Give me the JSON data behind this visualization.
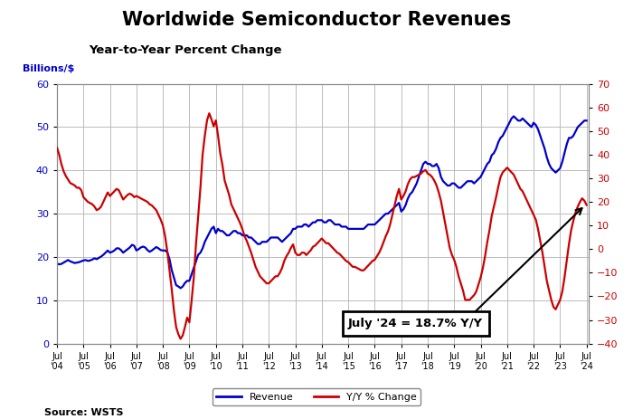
{
  "title": "Worldwide Semiconductor Revenues",
  "subtitle": "Year-to-Year Percent Change",
  "ylabel_left": "Billions/$",
  "source": "Source: WSTS",
  "ylim_left": [
    0,
    60
  ],
  "ylim_right": [
    -40,
    70
  ],
  "yticks_left": [
    0,
    10,
    20,
    30,
    40,
    50,
    60
  ],
  "yticks_right": [
    -40,
    -30,
    -20,
    -10,
    0,
    10,
    20,
    30,
    40,
    50,
    60,
    70
  ],
  "revenue_color": "#0000cc",
  "yoy_color": "#cc0000",
  "annotation_text": "July '24 = 18.7% Y/Y",
  "bg_color": "#ffffff",
  "plot_bg": "#ffffff",
  "grid_color": "#bbbbbb",
  "rev_x": [
    2004.5,
    2004.583,
    2004.667,
    2004.75,
    2004.833,
    2004.917,
    2005.0,
    2005.083,
    2005.167,
    2005.25,
    2005.333,
    2005.417,
    2005.5,
    2005.583,
    2005.667,
    2005.75,
    2005.833,
    2005.917,
    2006.0,
    2006.083,
    2006.167,
    2006.25,
    2006.333,
    2006.417,
    2006.5,
    2006.583,
    2006.667,
    2006.75,
    2006.833,
    2006.917,
    2007.0,
    2007.083,
    2007.167,
    2007.25,
    2007.333,
    2007.417,
    2007.5,
    2007.583,
    2007.667,
    2007.75,
    2007.833,
    2007.917,
    2008.0,
    2008.083,
    2008.167,
    2008.25,
    2008.333,
    2008.417,
    2008.5,
    2008.583,
    2008.667,
    2008.75,
    2008.833,
    2008.917,
    2009.0,
    2009.083,
    2009.167,
    2009.25,
    2009.333,
    2009.417,
    2009.5,
    2009.583,
    2009.667,
    2009.75,
    2009.833,
    2009.917,
    2010.0,
    2010.083,
    2010.167,
    2010.25,
    2010.333,
    2010.417,
    2010.5,
    2010.583,
    2010.667,
    2010.75,
    2010.833,
    2010.917,
    2011.0,
    2011.083,
    2011.167,
    2011.25,
    2011.333,
    2011.417,
    2011.5,
    2011.583,
    2011.667,
    2011.75,
    2011.833,
    2011.917,
    2012.0,
    2012.083,
    2012.167,
    2012.25,
    2012.333,
    2012.417,
    2012.5,
    2012.583,
    2012.667,
    2012.75,
    2012.833,
    2012.917,
    2013.0,
    2013.083,
    2013.167,
    2013.25,
    2013.333,
    2013.417,
    2013.5,
    2013.583,
    2013.667,
    2013.75,
    2013.833,
    2013.917,
    2014.0,
    2014.083,
    2014.167,
    2014.25,
    2014.333,
    2014.417,
    2014.5,
    2014.583,
    2014.667,
    2014.75,
    2014.833,
    2014.917,
    2015.0,
    2015.083,
    2015.167,
    2015.25,
    2015.333,
    2015.417,
    2015.5,
    2015.583,
    2015.667,
    2015.75,
    2015.833,
    2015.917,
    2016.0,
    2016.083,
    2016.167,
    2016.25,
    2016.333,
    2016.417,
    2016.5,
    2016.583,
    2016.667,
    2016.75,
    2016.833,
    2016.917,
    2017.0,
    2017.083,
    2017.167,
    2017.25,
    2017.333,
    2017.417,
    2017.5,
    2017.583,
    2017.667,
    2017.75,
    2017.833,
    2017.917,
    2018.0,
    2018.083,
    2018.167,
    2018.25,
    2018.333,
    2018.417,
    2018.5,
    2018.583,
    2018.667,
    2018.75,
    2018.833,
    2018.917,
    2019.0,
    2019.083,
    2019.167,
    2019.25,
    2019.333,
    2019.417,
    2019.5,
    2019.583,
    2019.667,
    2019.75,
    2019.833,
    2019.917,
    2020.0,
    2020.083,
    2020.167,
    2020.25,
    2020.333,
    2020.417,
    2020.5,
    2020.583,
    2020.667,
    2020.75,
    2020.833,
    2020.917,
    2021.0,
    2021.083,
    2021.167,
    2021.25,
    2021.333,
    2021.417,
    2021.5,
    2021.583,
    2021.667,
    2021.75,
    2021.833,
    2021.917,
    2022.0,
    2022.083,
    2022.167,
    2022.25,
    2022.333,
    2022.417,
    2022.5,
    2022.583,
    2022.667,
    2022.75,
    2022.833,
    2022.917,
    2023.0,
    2023.083,
    2023.167,
    2023.25,
    2023.333,
    2023.417,
    2023.5,
    2023.583,
    2023.667,
    2023.75,
    2023.833,
    2023.917,
    2024.0,
    2024.083,
    2024.167,
    2024.25,
    2024.333,
    2024.417,
    2024.5
  ],
  "rev_y": [
    18.5,
    18.3,
    18.4,
    18.7,
    19.0,
    19.3,
    19.0,
    18.8,
    18.6,
    18.7,
    18.8,
    19.0,
    19.2,
    19.3,
    19.1,
    19.2,
    19.4,
    19.7,
    19.5,
    19.8,
    20.1,
    20.5,
    21.0,
    21.5,
    21.0,
    21.2,
    21.5,
    22.0,
    22.0,
    21.6,
    21.0,
    21.4,
    21.8,
    22.2,
    22.8,
    22.6,
    21.5,
    21.8,
    22.2,
    22.4,
    22.2,
    21.6,
    21.2,
    21.5,
    21.9,
    22.3,
    22.0,
    21.6,
    21.5,
    21.5,
    21.1,
    19.5,
    17.0,
    15.2,
    13.5,
    13.2,
    12.8,
    13.2,
    14.0,
    14.5,
    14.5,
    16.0,
    17.5,
    19.0,
    20.5,
    21.0,
    22.0,
    23.5,
    24.5,
    25.5,
    26.5,
    27.0,
    25.5,
    26.5,
    26.0,
    26.0,
    25.5,
    25.0,
    25.0,
    25.5,
    26.0,
    26.0,
    25.5,
    25.5,
    25.0,
    25.0,
    25.0,
    24.5,
    24.5,
    24.0,
    23.5,
    23.0,
    23.0,
    23.5,
    23.5,
    23.5,
    24.0,
    24.5,
    24.5,
    24.5,
    24.5,
    24.0,
    23.5,
    24.0,
    24.5,
    25.0,
    25.5,
    26.5,
    26.5,
    27.0,
    27.0,
    27.0,
    27.5,
    27.5,
    27.0,
    27.5,
    28.0,
    28.0,
    28.5,
    28.5,
    28.5,
    28.0,
    28.0,
    28.5,
    28.5,
    28.0,
    27.5,
    27.5,
    27.5,
    27.0,
    27.0,
    27.0,
    26.5,
    26.5,
    26.5,
    26.5,
    26.5,
    26.5,
    26.5,
    26.5,
    27.0,
    27.5,
    27.5,
    27.5,
    27.5,
    28.0,
    28.5,
    29.0,
    29.5,
    30.0,
    30.0,
    30.5,
    31.0,
    31.5,
    32.0,
    32.5,
    30.5,
    31.0,
    32.0,
    33.5,
    34.5,
    35.0,
    36.0,
    37.0,
    38.5,
    40.0,
    41.5,
    42.0,
    41.5,
    41.5,
    41.0,
    41.0,
    41.5,
    40.5,
    38.5,
    37.5,
    37.0,
    36.5,
    36.5,
    37.0,
    37.0,
    36.5,
    36.0,
    36.0,
    36.5,
    37.0,
    37.5,
    37.5,
    37.5,
    37.0,
    37.5,
    38.0,
    38.5,
    39.5,
    40.5,
    41.5,
    42.0,
    43.5,
    44.0,
    45.0,
    46.5,
    47.5,
    48.0,
    49.0,
    50.0,
    51.0,
    52.0,
    52.5,
    52.0,
    51.5,
    51.5,
    52.0,
    51.5,
    51.0,
    50.5,
    50.0,
    51.0,
    50.5,
    49.5,
    48.0,
    46.5,
    45.0,
    43.0,
    41.5,
    40.5,
    40.0,
    39.5,
    40.0,
    40.5,
    42.0,
    44.0,
    46.0,
    47.5,
    47.5,
    48.0,
    49.0,
    50.0,
    50.5,
    51.0,
    51.5,
    51.5
  ],
  "yoy_x": [
    2004.5,
    2004.583,
    2004.667,
    2004.75,
    2004.833,
    2004.917,
    2005.0,
    2005.083,
    2005.167,
    2005.25,
    2005.333,
    2005.417,
    2005.5,
    2005.583,
    2005.667,
    2005.75,
    2005.833,
    2005.917,
    2006.0,
    2006.083,
    2006.167,
    2006.25,
    2006.333,
    2006.417,
    2006.5,
    2006.583,
    2006.667,
    2006.75,
    2006.833,
    2006.917,
    2007.0,
    2007.083,
    2007.167,
    2007.25,
    2007.333,
    2007.417,
    2007.5,
    2007.583,
    2007.667,
    2007.75,
    2007.833,
    2007.917,
    2008.0,
    2008.083,
    2008.167,
    2008.25,
    2008.333,
    2008.417,
    2008.5,
    2008.583,
    2008.667,
    2008.75,
    2008.833,
    2008.917,
    2009.0,
    2009.083,
    2009.167,
    2009.25,
    2009.333,
    2009.417,
    2009.5,
    2009.583,
    2009.667,
    2009.75,
    2009.833,
    2009.917,
    2010.0,
    2010.083,
    2010.167,
    2010.25,
    2010.333,
    2010.417,
    2010.5,
    2010.583,
    2010.667,
    2010.75,
    2010.833,
    2010.917,
    2011.0,
    2011.083,
    2011.167,
    2011.25,
    2011.333,
    2011.417,
    2011.5,
    2011.583,
    2011.667,
    2011.75,
    2011.833,
    2011.917,
    2012.0,
    2012.083,
    2012.167,
    2012.25,
    2012.333,
    2012.417,
    2012.5,
    2012.583,
    2012.667,
    2012.75,
    2012.833,
    2012.917,
    2013.0,
    2013.083,
    2013.167,
    2013.25,
    2013.333,
    2013.417,
    2013.5,
    2013.583,
    2013.667,
    2013.75,
    2013.833,
    2013.917,
    2014.0,
    2014.083,
    2014.167,
    2014.25,
    2014.333,
    2014.417,
    2014.5,
    2014.583,
    2014.667,
    2014.75,
    2014.833,
    2014.917,
    2015.0,
    2015.083,
    2015.167,
    2015.25,
    2015.333,
    2015.417,
    2015.5,
    2015.583,
    2015.667,
    2015.75,
    2015.833,
    2015.917,
    2016.0,
    2016.083,
    2016.167,
    2016.25,
    2016.333,
    2016.417,
    2016.5,
    2016.583,
    2016.667,
    2016.75,
    2016.833,
    2016.917,
    2017.0,
    2017.083,
    2017.167,
    2017.25,
    2017.333,
    2017.417,
    2017.5,
    2017.583,
    2017.667,
    2017.75,
    2017.833,
    2017.917,
    2018.0,
    2018.083,
    2018.167,
    2018.25,
    2018.333,
    2018.417,
    2018.5,
    2018.583,
    2018.667,
    2018.75,
    2018.833,
    2018.917,
    2019.0,
    2019.083,
    2019.167,
    2019.25,
    2019.333,
    2019.417,
    2019.5,
    2019.583,
    2019.667,
    2019.75,
    2019.833,
    2019.917,
    2020.0,
    2020.083,
    2020.167,
    2020.25,
    2020.333,
    2020.417,
    2020.5,
    2020.583,
    2020.667,
    2020.75,
    2020.833,
    2020.917,
    2021.0,
    2021.083,
    2021.167,
    2021.25,
    2021.333,
    2021.417,
    2021.5,
    2021.583,
    2021.667,
    2021.75,
    2021.833,
    2021.917,
    2022.0,
    2022.083,
    2022.167,
    2022.25,
    2022.333,
    2022.417,
    2022.5,
    2022.583,
    2022.667,
    2022.75,
    2022.833,
    2022.917,
    2023.0,
    2023.083,
    2023.167,
    2023.25,
    2023.333,
    2023.417,
    2023.5,
    2023.583,
    2023.667,
    2023.75,
    2023.833,
    2023.917,
    2024.0,
    2024.083,
    2024.167,
    2024.25,
    2024.333,
    2024.417,
    2024.5
  ],
  "yoy_y": [
    43.0,
    40.0,
    36.0,
    33.0,
    31.0,
    29.5,
    28.0,
    27.5,
    27.0,
    26.0,
    26.0,
    25.0,
    22.0,
    21.0,
    20.0,
    19.5,
    19.0,
    18.0,
    16.5,
    17.0,
    18.0,
    20.0,
    22.0,
    24.0,
    22.5,
    23.5,
    24.5,
    25.5,
    25.0,
    23.0,
    21.0,
    22.0,
    23.0,
    23.5,
    23.0,
    22.0,
    22.5,
    22.0,
    21.5,
    21.0,
    20.5,
    20.0,
    19.0,
    18.5,
    17.5,
    16.5,
    14.5,
    12.5,
    10.0,
    5.5,
    -1.0,
    -9.0,
    -17.0,
    -26.0,
    -33.0,
    -36.0,
    -38.0,
    -36.5,
    -33.0,
    -29.0,
    -31.0,
    -22.0,
    -12.0,
    2.0,
    14.0,
    26.0,
    40.0,
    48.0,
    54.5,
    57.5,
    55.0,
    52.0,
    54.5,
    48.0,
    40.5,
    35.5,
    29.0,
    26.0,
    23.0,
    19.0,
    17.0,
    15.0,
    13.0,
    11.0,
    8.5,
    5.5,
    3.5,
    1.0,
    -1.5,
    -4.5,
    -7.5,
    -9.5,
    -11.5,
    -12.5,
    -13.5,
    -14.5,
    -14.5,
    -13.5,
    -12.5,
    -11.5,
    -11.5,
    -10.0,
    -8.0,
    -5.0,
    -3.0,
    -1.5,
    0.5,
    2.0,
    -1.5,
    -2.5,
    -2.5,
    -1.5,
    -1.5,
    -2.5,
    -1.5,
    -0.5,
    1.0,
    1.5,
    2.5,
    3.5,
    4.5,
    3.5,
    2.5,
    2.5,
    1.5,
    0.5,
    -0.5,
    -1.5,
    -2.0,
    -3.0,
    -4.0,
    -5.0,
    -5.5,
    -6.5,
    -7.5,
    -7.5,
    -8.0,
    -8.5,
    -9.0,
    -9.0,
    -8.0,
    -7.0,
    -6.0,
    -5.0,
    -4.5,
    -3.0,
    -1.5,
    0.5,
    3.0,
    5.5,
    7.5,
    10.5,
    14.5,
    18.5,
    22.5,
    25.5,
    21.0,
    22.5,
    24.5,
    27.5,
    29.5,
    30.5,
    30.5,
    31.0,
    31.5,
    32.0,
    33.0,
    33.5,
    32.0,
    31.5,
    30.5,
    29.0,
    27.0,
    24.0,
    20.5,
    15.5,
    10.5,
    5.5,
    0.5,
    -2.5,
    -4.5,
    -7.5,
    -11.5,
    -14.5,
    -17.5,
    -21.5,
    -21.5,
    -21.5,
    -20.5,
    -19.5,
    -18.0,
    -15.0,
    -12.0,
    -8.0,
    -3.0,
    3.0,
    8.0,
    14.0,
    18.0,
    22.0,
    26.5,
    30.5,
    32.5,
    33.5,
    34.5,
    33.5,
    32.5,
    31.5,
    29.5,
    27.5,
    25.5,
    24.5,
    22.5,
    20.5,
    18.5,
    16.5,
    14.5,
    12.5,
    8.5,
    3.5,
    -1.5,
    -7.5,
    -13.5,
    -17.5,
    -21.5,
    -24.5,
    -25.5,
    -23.5,
    -21.5,
    -18.0,
    -12.0,
    -5.0,
    2.0,
    8.0,
    12.0,
    15.5,
    18.0,
    20.0,
    21.5,
    20.5,
    18.7
  ]
}
